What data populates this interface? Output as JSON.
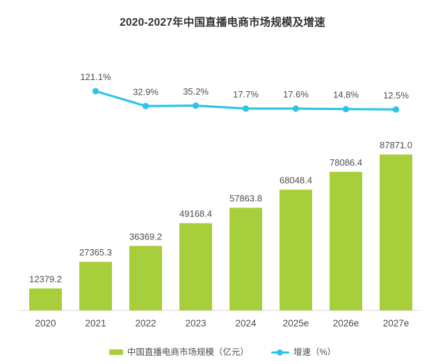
{
  "chart_data": {
    "type": "bar+line",
    "title": "2020-2027年中国直播电商市场规模及增速",
    "categories": [
      "2020",
      "2021",
      "2022",
      "2023",
      "2024",
      "2025e",
      "2026e",
      "2027e"
    ],
    "series": [
      {
        "name": "中国直播电商市场规模（亿元）",
        "type": "bar",
        "color": "#a7ce3b",
        "values": [
          12379.2,
          27365.3,
          36369.2,
          49168.4,
          57863.8,
          68048.4,
          78086.4,
          87871.0
        ],
        "labels": [
          "12379.2",
          "27365.3",
          "36369.2",
          "49168.4",
          "57863.8",
          "68048.4",
          "78086.4",
          "87871.0"
        ]
      },
      {
        "name": "增速（%）",
        "type": "line",
        "color": "#2fc3ea",
        "values": [
          null,
          121.1,
          32.9,
          35.2,
          17.7,
          17.6,
          14.8,
          12.5
        ],
        "labels": [
          null,
          "121.1%",
          "32.9%",
          "35.2%",
          "17.7%",
          "17.6%",
          "14.8%",
          "12.5%"
        ]
      }
    ],
    "legend": [
      "中国直播电商市场规模（亿元）",
      "增速（%）"
    ],
    "legend_position": "bottom",
    "grid": false,
    "label_color": "#4d4d4d",
    "axis_line_color": "#e3e3e3",
    "title_color": "#333333"
  }
}
